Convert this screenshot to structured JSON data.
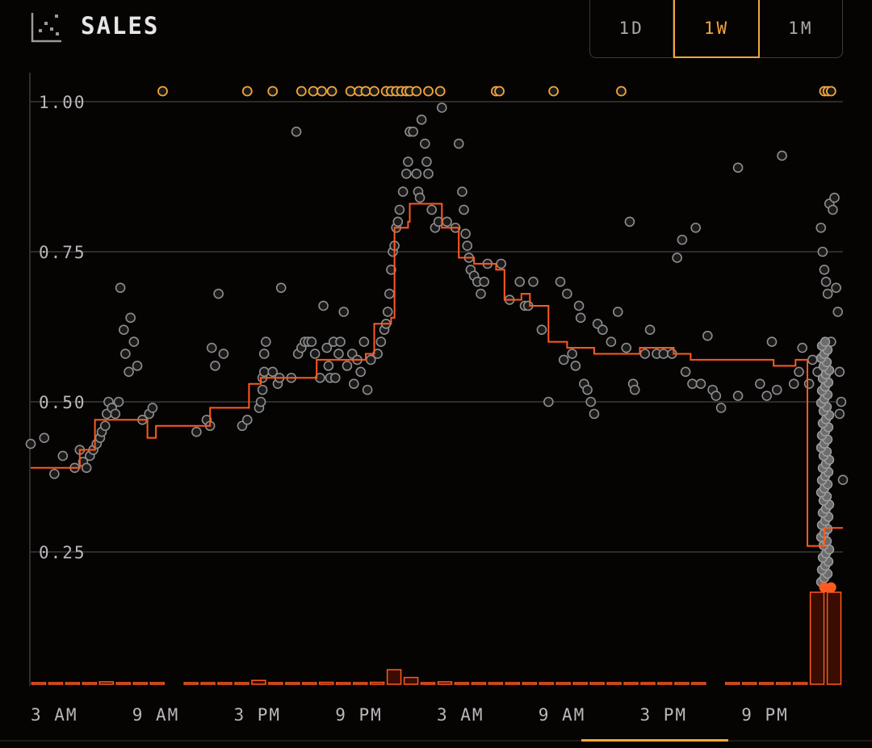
{
  "header": {
    "title": "SALES",
    "icon": "scatter-chart-icon",
    "tabs": [
      {
        "label": "1D",
        "active": false
      },
      {
        "label": "1W",
        "active": true
      },
      {
        "label": "1M",
        "active": false
      }
    ]
  },
  "colors": {
    "background": "#060303",
    "accent": "#f2a63a",
    "line": "#ff5a1f",
    "point": "#8e8e8e",
    "grid": "#3a3a3a"
  },
  "chart_data": {
    "type": "scatter",
    "title": "",
    "xlabel": "",
    "ylabel": "",
    "ylim": [
      0,
      1.0
    ],
    "y_ticks": [
      {
        "value": 1.0,
        "label": "1.00"
      },
      {
        "value": 0.75,
        "label": "0.75"
      },
      {
        "value": 0.5,
        "label": "0.50"
      },
      {
        "value": 0.25,
        "label": "0.25"
      }
    ],
    "xlim": [
      0,
      48
    ],
    "x_ticks": [
      {
        "value": 0,
        "label": "3 AM"
      },
      {
        "value": 6,
        "label": "9 AM"
      },
      {
        "value": 12,
        "label": "3 PM"
      },
      {
        "value": 18,
        "label": "9 PM"
      },
      {
        "value": 24,
        "label": "3 AM"
      },
      {
        "value": 30,
        "label": "9 AM"
      },
      {
        "value": 36,
        "label": "3 PM"
      },
      {
        "value": 42,
        "label": "9 PM"
      }
    ],
    "grid": true,
    "points": [
      [
        0.0,
        0.43
      ],
      [
        0.8,
        0.44
      ],
      [
        1.4,
        0.38
      ],
      [
        1.9,
        0.41
      ],
      [
        2.6,
        0.39
      ],
      [
        2.9,
        0.42
      ],
      [
        3.1,
        0.4
      ],
      [
        3.3,
        0.39
      ],
      [
        3.5,
        0.41
      ],
      [
        3.7,
        0.42
      ],
      [
        3.9,
        0.43
      ],
      [
        4.1,
        0.44
      ],
      [
        4.2,
        0.45
      ],
      [
        4.4,
        0.46
      ],
      [
        4.5,
        0.48
      ],
      [
        4.6,
        0.5
      ],
      [
        4.8,
        0.49
      ],
      [
        5.0,
        0.48
      ],
      [
        5.2,
        0.5
      ],
      [
        5.3,
        0.69
      ],
      [
        5.5,
        0.62
      ],
      [
        5.6,
        0.58
      ],
      [
        5.8,
        0.55
      ],
      [
        5.9,
        0.64
      ],
      [
        6.1,
        0.6
      ],
      [
        6.3,
        0.56
      ],
      [
        6.6,
        0.47
      ],
      [
        7.0,
        0.48
      ],
      [
        7.2,
        0.49
      ],
      [
        9.8,
        0.45
      ],
      [
        10.4,
        0.47
      ],
      [
        10.6,
        0.46
      ],
      [
        10.7,
        0.59
      ],
      [
        10.9,
        0.56
      ],
      [
        11.1,
        0.68
      ],
      [
        11.4,
        0.58
      ],
      [
        12.5,
        0.46
      ],
      [
        12.8,
        0.47
      ],
      [
        13.5,
        0.49
      ],
      [
        13.6,
        0.5
      ],
      [
        13.7,
        0.52
      ],
      [
        13.7,
        0.54
      ],
      [
        13.8,
        0.55
      ],
      [
        13.8,
        0.58
      ],
      [
        13.9,
        0.6
      ],
      [
        14.3,
        0.55
      ],
      [
        14.6,
        0.53
      ],
      [
        14.7,
        0.54
      ],
      [
        14.8,
        0.69
      ],
      [
        15.4,
        0.54
      ],
      [
        15.7,
        0.95
      ],
      [
        15.8,
        0.58
      ],
      [
        16.0,
        0.59
      ],
      [
        16.2,
        0.6
      ],
      [
        16.4,
        0.6
      ],
      [
        16.6,
        0.6
      ],
      [
        16.8,
        0.58
      ],
      [
        17.1,
        0.54
      ],
      [
        17.3,
        0.66
      ],
      [
        17.5,
        0.59
      ],
      [
        17.6,
        0.56
      ],
      [
        17.7,
        0.54
      ],
      [
        17.9,
        0.6
      ],
      [
        18.0,
        0.54
      ],
      [
        18.2,
        0.58
      ],
      [
        18.3,
        0.6
      ],
      [
        18.5,
        0.65
      ],
      [
        18.7,
        0.56
      ],
      [
        19.0,
        0.58
      ],
      [
        19.1,
        0.53
      ],
      [
        19.3,
        0.57
      ],
      [
        19.5,
        0.55
      ],
      [
        19.7,
        0.6
      ],
      [
        19.9,
        0.52
      ],
      [
        20.1,
        0.57
      ],
      [
        20.5,
        0.58
      ],
      [
        20.7,
        0.6
      ],
      [
        20.9,
        0.62
      ],
      [
        21.0,
        0.63
      ],
      [
        21.1,
        0.65
      ],
      [
        21.2,
        0.68
      ],
      [
        21.3,
        0.72
      ],
      [
        21.4,
        0.75
      ],
      [
        21.5,
        0.76
      ],
      [
        21.6,
        0.79
      ],
      [
        21.7,
        0.8
      ],
      [
        21.8,
        0.82
      ],
      [
        22.0,
        0.85
      ],
      [
        22.2,
        0.88
      ],
      [
        22.3,
        0.9
      ],
      [
        22.4,
        0.95
      ],
      [
        22.6,
        0.95
      ],
      [
        22.8,
        0.88
      ],
      [
        22.9,
        0.85
      ],
      [
        23.0,
        0.84
      ],
      [
        23.1,
        0.97
      ],
      [
        23.3,
        0.93
      ],
      [
        23.4,
        0.9
      ],
      [
        23.5,
        0.88
      ],
      [
        23.7,
        0.82
      ],
      [
        23.9,
        0.79
      ],
      [
        24.1,
        0.8
      ],
      [
        24.3,
        0.99
      ],
      [
        24.6,
        0.8
      ],
      [
        25.1,
        0.79
      ],
      [
        25.3,
        0.93
      ],
      [
        25.5,
        0.85
      ],
      [
        25.6,
        0.82
      ],
      [
        25.7,
        0.78
      ],
      [
        25.8,
        0.76
      ],
      [
        25.9,
        0.74
      ],
      [
        26.0,
        0.72
      ],
      [
        26.2,
        0.71
      ],
      [
        26.4,
        0.7
      ],
      [
        26.6,
        0.68
      ],
      [
        26.8,
        0.7
      ],
      [
        27.0,
        0.73
      ],
      [
        27.8,
        0.73
      ],
      [
        28.3,
        0.67
      ],
      [
        28.9,
        0.7
      ],
      [
        29.2,
        0.66
      ],
      [
        29.4,
        0.66
      ],
      [
        29.7,
        0.7
      ],
      [
        30.2,
        0.62
      ],
      [
        30.6,
        0.5
      ],
      [
        31.3,
        0.7
      ],
      [
        31.5,
        0.57
      ],
      [
        31.7,
        0.68
      ],
      [
        32.0,
        0.58
      ],
      [
        32.2,
        0.56
      ],
      [
        32.4,
        0.66
      ],
      [
        32.5,
        0.64
      ],
      [
        32.7,
        0.53
      ],
      [
        32.9,
        0.52
      ],
      [
        33.1,
        0.5
      ],
      [
        33.3,
        0.48
      ],
      [
        33.5,
        0.63
      ],
      [
        33.8,
        0.62
      ],
      [
        34.3,
        0.6
      ],
      [
        34.7,
        0.65
      ],
      [
        35.2,
        0.59
      ],
      [
        35.4,
        0.8
      ],
      [
        35.6,
        0.53
      ],
      [
        35.7,
        0.52
      ],
      [
        36.3,
        0.58
      ],
      [
        36.6,
        0.62
      ],
      [
        37.0,
        0.58
      ],
      [
        37.4,
        0.58
      ],
      [
        37.9,
        0.58
      ],
      [
        38.2,
        0.74
      ],
      [
        38.5,
        0.77
      ],
      [
        38.7,
        0.55
      ],
      [
        39.1,
        0.53
      ],
      [
        39.3,
        0.79
      ],
      [
        39.6,
        0.53
      ],
      [
        40.0,
        0.61
      ],
      [
        40.3,
        0.52
      ],
      [
        40.5,
        0.51
      ],
      [
        40.8,
        0.49
      ],
      [
        41.8,
        0.89
      ],
      [
        41.8,
        0.51
      ],
      [
        43.1,
        0.53
      ],
      [
        43.5,
        0.51
      ],
      [
        43.8,
        0.6
      ],
      [
        44.1,
        0.52
      ],
      [
        44.4,
        0.91
      ],
      [
        45.1,
        0.53
      ],
      [
        45.4,
        0.55
      ],
      [
        45.6,
        0.59
      ],
      [
        46.0,
        0.53
      ],
      [
        46.2,
        0.57
      ],
      [
        46.5,
        0.55
      ],
      [
        46.7,
        0.79
      ],
      [
        46.8,
        0.75
      ],
      [
        46.9,
        0.72
      ],
      [
        47.0,
        0.7
      ],
      [
        47.1,
        0.68
      ],
      [
        47.2,
        0.83
      ],
      [
        47.3,
        0.6
      ],
      [
        47.4,
        0.82
      ],
      [
        47.5,
        0.84
      ],
      [
        47.6,
        0.69
      ],
      [
        47.7,
        0.65
      ],
      [
        47.8,
        0.55
      ],
      [
        47.9,
        0.5
      ],
      [
        47.8,
        0.48
      ],
      [
        48.0,
        0.37
      ]
    ],
    "dense_points_x": 46.95,
    "dense_points_range": [
      0.2,
      0.6
    ],
    "outliers_above": [
      7.8,
      12.8,
      14.3,
      16.0,
      16.7,
      17.2,
      17.8,
      18.9,
      19.4,
      19.8,
      20.3,
      21.0,
      21.3,
      21.6,
      21.9,
      22.2,
      22.4,
      22.8,
      23.5,
      24.2,
      27.5,
      27.7,
      30.9,
      34.9,
      46.9,
      47.1,
      47.3
    ],
    "low_markers_x": [
      46.9,
      47.3
    ],
    "median_step": [
      [
        0.0,
        0.39
      ],
      [
        2.9,
        0.39
      ],
      [
        2.9,
        0.42
      ],
      [
        3.8,
        0.42
      ],
      [
        3.8,
        0.47
      ],
      [
        6.9,
        0.47
      ],
      [
        6.9,
        0.44
      ],
      [
        7.4,
        0.44
      ],
      [
        7.4,
        0.46
      ],
      [
        10.6,
        0.46
      ],
      [
        10.6,
        0.49
      ],
      [
        12.9,
        0.49
      ],
      [
        12.9,
        0.53
      ],
      [
        13.6,
        0.53
      ],
      [
        13.6,
        0.54
      ],
      [
        16.9,
        0.54
      ],
      [
        16.9,
        0.57
      ],
      [
        19.8,
        0.57
      ],
      [
        19.8,
        0.58
      ],
      [
        20.3,
        0.58
      ],
      [
        20.3,
        0.63
      ],
      [
        21.3,
        0.63
      ],
      [
        21.3,
        0.64
      ],
      [
        21.5,
        0.64
      ],
      [
        21.5,
        0.79
      ],
      [
        22.3,
        0.79
      ],
      [
        22.3,
        0.8
      ],
      [
        22.4,
        0.8
      ],
      [
        22.4,
        0.83
      ],
      [
        24.3,
        0.83
      ],
      [
        24.3,
        0.79
      ],
      [
        25.3,
        0.79
      ],
      [
        25.3,
        0.74
      ],
      [
        26.2,
        0.74
      ],
      [
        26.2,
        0.73
      ],
      [
        27.5,
        0.73
      ],
      [
        27.5,
        0.72
      ],
      [
        28.0,
        0.72
      ],
      [
        28.0,
        0.67
      ],
      [
        29.0,
        0.67
      ],
      [
        29.0,
        0.68
      ],
      [
        29.5,
        0.68
      ],
      [
        29.5,
        0.66
      ],
      [
        30.6,
        0.66
      ],
      [
        30.6,
        0.6
      ],
      [
        31.7,
        0.6
      ],
      [
        31.7,
        0.59
      ],
      [
        33.3,
        0.59
      ],
      [
        33.3,
        0.58
      ],
      [
        36.0,
        0.58
      ],
      [
        36.0,
        0.59
      ],
      [
        38.0,
        0.59
      ],
      [
        38.0,
        0.58
      ],
      [
        39.0,
        0.58
      ],
      [
        39.0,
        0.57
      ],
      [
        41.0,
        0.57
      ],
      [
        41.0,
        0.57
      ],
      [
        43.9,
        0.57
      ],
      [
        43.9,
        0.56
      ],
      [
        45.2,
        0.56
      ],
      [
        45.2,
        0.57
      ],
      [
        45.9,
        0.57
      ],
      [
        45.9,
        0.26
      ],
      [
        46.9,
        0.26
      ],
      [
        46.9,
        0.29
      ],
      [
        48.0,
        0.29
      ]
    ],
    "volume_bars": [
      {
        "x": 0.0,
        "value": 0.01
      },
      {
        "x": 1.0,
        "value": 0.01
      },
      {
        "x": 2.0,
        "value": 0.01
      },
      {
        "x": 3.0,
        "value": 0.015
      },
      {
        "x": 4.0,
        "value": 0.025
      },
      {
        "x": 5.0,
        "value": 0.01
      },
      {
        "x": 6.0,
        "value": 0.01
      },
      {
        "x": 7.0,
        "value": 0.01
      },
      {
        "x": 9.0,
        "value": 0.01
      },
      {
        "x": 10.0,
        "value": 0.01
      },
      {
        "x": 11.0,
        "value": 0.01
      },
      {
        "x": 12.0,
        "value": 0.01
      },
      {
        "x": 13.0,
        "value": 0.04
      },
      {
        "x": 14.0,
        "value": 0.01
      },
      {
        "x": 15.0,
        "value": 0.01
      },
      {
        "x": 16.0,
        "value": 0.01
      },
      {
        "x": 17.0,
        "value": 0.02
      },
      {
        "x": 18.0,
        "value": 0.01
      },
      {
        "x": 19.0,
        "value": 0.01
      },
      {
        "x": 20.0,
        "value": 0.02
      },
      {
        "x": 21.0,
        "value": 0.15
      },
      {
        "x": 22.0,
        "value": 0.07
      },
      {
        "x": 23.0,
        "value": 0.01
      },
      {
        "x": 24.0,
        "value": 0.025
      },
      {
        "x": 25.0,
        "value": 0.01
      },
      {
        "x": 26.0,
        "value": 0.01
      },
      {
        "x": 27.0,
        "value": 0.01
      },
      {
        "x": 28.0,
        "value": 0.01
      },
      {
        "x": 29.0,
        "value": 0.01
      },
      {
        "x": 30.0,
        "value": 0.01
      },
      {
        "x": 31.0,
        "value": 0.01
      },
      {
        "x": 32.0,
        "value": 0.01
      },
      {
        "x": 33.0,
        "value": 0.01
      },
      {
        "x": 34.0,
        "value": 0.015
      },
      {
        "x": 35.0,
        "value": 0.01
      },
      {
        "x": 36.0,
        "value": 0.01
      },
      {
        "x": 37.0,
        "value": 0.01
      },
      {
        "x": 38.0,
        "value": 0.01
      },
      {
        "x": 39.0,
        "value": 0.01
      },
      {
        "x": 41.0,
        "value": 0.01
      },
      {
        "x": 42.0,
        "value": 0.01
      },
      {
        "x": 43.0,
        "value": 0.01
      },
      {
        "x": 44.0,
        "value": 0.01
      },
      {
        "x": 45.0,
        "value": 0.01
      },
      {
        "x": 46.0,
        "value": 0.95
      },
      {
        "x": 47.0,
        "value": 0.95
      }
    ]
  }
}
